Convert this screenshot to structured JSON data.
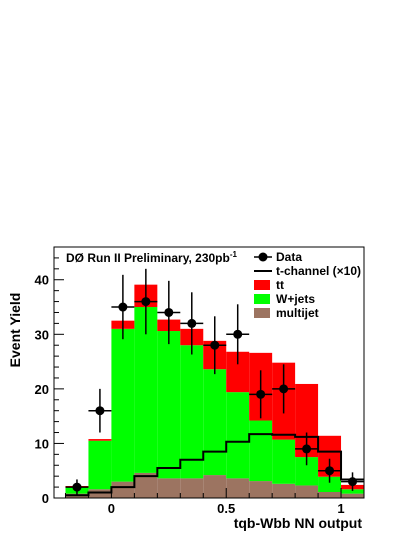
{
  "chart_data": {
    "type": "bar",
    "title": "DØ Run II Preliminary, 230pb",
    "title_superscript": "-1",
    "xlabel": "tqb-Wbb NN output",
    "ylabel": "Event Yield",
    "xlim": [
      -0.25,
      1.1
    ],
    "ylim": [
      0,
      46
    ],
    "x_ticks": [
      0,
      0.5,
      1
    ],
    "y_ticks": [
      0,
      10,
      20,
      30,
      40
    ],
    "bin_edges": [
      -0.2,
      -0.1,
      0.0,
      0.1,
      0.2,
      0.3,
      0.4,
      0.5,
      0.6,
      0.7,
      0.8,
      0.9,
      1.0,
      1.1
    ],
    "stacked_series": [
      {
        "name": "multijet",
        "color": "#9c7461",
        "values": [
          0.8,
          1.6,
          3.0,
          4.6,
          3.6,
          3.6,
          4.2,
          3.6,
          3.1,
          2.6,
          2.3,
          1.1,
          0.8
        ]
      },
      {
        "name": "W+jets",
        "color": "#00ff00",
        "values": [
          1.2,
          8.9,
          28.0,
          30.4,
          27.0,
          24.4,
          19.4,
          15.8,
          11.1,
          8.1,
          5.2,
          2.8,
          0.8
        ]
      },
      {
        "name": "tt",
        "color": "#ff0000",
        "values": [
          0.2,
          0.3,
          1.5,
          4.1,
          2.1,
          3.0,
          5.2,
          7.4,
          12.4,
          14.1,
          13.4,
          7.5,
          0.8
        ]
      }
    ],
    "signal": {
      "name": "t-channel (×10)",
      "color": "#000000",
      "values": [
        0.5,
        1.0,
        2.0,
        4.0,
        5.5,
        7.0,
        8.5,
        10.3,
        11.7,
        11.6,
        11.2,
        8.5,
        3.4
      ]
    },
    "data_points": {
      "name": "Data",
      "x": [
        -0.15,
        -0.05,
        0.05,
        0.15,
        0.25,
        0.35,
        0.45,
        0.55,
        0.65,
        0.75,
        0.85,
        0.95,
        1.05
      ],
      "y": [
        2,
        16,
        35,
        36,
        34,
        32,
        28,
        30,
        19,
        20,
        9,
        5,
        3
      ],
      "err": [
        1.4,
        4.0,
        5.9,
        6.0,
        5.8,
        5.7,
        5.3,
        5.5,
        4.4,
        4.5,
        3.0,
        2.2,
        1.7
      ]
    },
    "legend": {
      "placement": "top-right",
      "entries": [
        {
          "label": "Data",
          "kind": "marker"
        },
        {
          "label": "t-channel (×10)",
          "kind": "line"
        },
        {
          "label": "tt",
          "kind": "fill",
          "color": "#ff0000"
        },
        {
          "label": "W+jets",
          "kind": "fill",
          "color": "#00ff00"
        },
        {
          "label": "multijet",
          "kind": "fill",
          "color": "#9c7461"
        }
      ]
    }
  }
}
